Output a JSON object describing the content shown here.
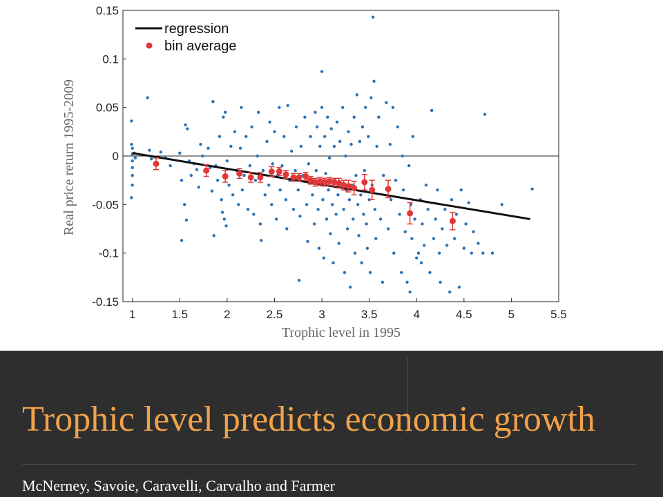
{
  "slide": {
    "title": "Trophic level predicts economic growth",
    "authors": "McNerney, Savoie, Caravelli, Carvalho and Farmer",
    "title_color": "#f0a24a",
    "footer_background": "#2e2e2e"
  },
  "chart_data": {
    "type": "scatter",
    "title": "",
    "xlabel": "Trophic level in 1995",
    "ylabel": "Real price return 1995-2009",
    "xlim": [
      0.9,
      5.5
    ],
    "ylim": [
      -0.15,
      0.15
    ],
    "xticks": [
      "1",
      "1.5",
      "2",
      "2.5",
      "3",
      "3.5",
      "4",
      "4.5",
      "5",
      "5.5"
    ],
    "yticks": [
      "0.15",
      "0.1",
      "0.05",
      "0",
      "-0.05",
      "-0.1",
      "-0.15"
    ],
    "legend": {
      "placement": "top-left",
      "entries": [
        "regression",
        "bin average"
      ]
    },
    "zero_line": true,
    "grid": false,
    "colors": {
      "scatter": "#2a72b5",
      "regression": "#111111",
      "bin_average": "#e03838"
    },
    "series": [
      {
        "name": "regression",
        "kind": "line",
        "x": [
          1,
          5.2
        ],
        "y": [
          0.003,
          -0.065
        ]
      },
      {
        "name": "bin average",
        "kind": "errorbar",
        "points": [
          {
            "x": 1.25,
            "y": -0.008,
            "err": 0.006
          },
          {
            "x": 1.78,
            "y": -0.015,
            "err": 0.006
          },
          {
            "x": 1.98,
            "y": -0.021,
            "err": 0.006
          },
          {
            "x": 2.13,
            "y": -0.018,
            "err": 0.005
          },
          {
            "x": 2.25,
            "y": -0.022,
            "err": 0.005
          },
          {
            "x": 2.35,
            "y": -0.022,
            "err": 0.005
          },
          {
            "x": 2.47,
            "y": -0.016,
            "err": 0.005
          },
          {
            "x": 2.55,
            "y": -0.016,
            "err": 0.004
          },
          {
            "x": 2.62,
            "y": -0.019,
            "err": 0.004
          },
          {
            "x": 2.7,
            "y": -0.022,
            "err": 0.004
          },
          {
            "x": 2.76,
            "y": -0.022,
            "err": 0.004
          },
          {
            "x": 2.83,
            "y": -0.021,
            "err": 0.004
          },
          {
            "x": 2.88,
            "y": -0.025,
            "err": 0.004
          },
          {
            "x": 2.93,
            "y": -0.027,
            "err": 0.004
          },
          {
            "x": 2.98,
            "y": -0.026,
            "err": 0.004
          },
          {
            "x": 3.03,
            "y": -0.027,
            "err": 0.004
          },
          {
            "x": 3.08,
            "y": -0.026,
            "err": 0.004
          },
          {
            "x": 3.13,
            "y": -0.027,
            "err": 0.004
          },
          {
            "x": 3.18,
            "y": -0.028,
            "err": 0.005
          },
          {
            "x": 3.23,
            "y": -0.03,
            "err": 0.005
          },
          {
            "x": 3.28,
            "y": -0.031,
            "err": 0.006
          },
          {
            "x": 3.34,
            "y": -0.033,
            "err": 0.007
          },
          {
            "x": 3.45,
            "y": -0.027,
            "err": 0.008
          },
          {
            "x": 3.53,
            "y": -0.035,
            "err": 0.01
          },
          {
            "x": 3.7,
            "y": -0.034,
            "err": 0.009
          },
          {
            "x": 3.93,
            "y": -0.059,
            "err": 0.011
          },
          {
            "x": 4.38,
            "y": -0.067,
            "err": 0.009
          }
        ]
      },
      {
        "name": "",
        "kind": "scatter",
        "points": [
          [
            0.99,
            0.036
          ],
          [
            0.99,
            0.012
          ],
          [
            1.0,
            0.008
          ],
          [
            1.0,
            0.002
          ],
          [
            1.0,
            -0.005
          ],
          [
            1.0,
            -0.012
          ],
          [
            1.0,
            -0.02
          ],
          [
            1.0,
            -0.03
          ],
          [
            0.99,
            -0.043
          ],
          [
            1.02,
            0.003
          ],
          [
            1.03,
            -0.002
          ],
          [
            1.16,
            0.06
          ],
          [
            1.18,
            0.006
          ],
          [
            1.2,
            -0.003
          ],
          [
            1.3,
            0.004
          ],
          [
            1.35,
            -0.002
          ],
          [
            1.4,
            -0.01
          ],
          [
            1.5,
            0.003
          ],
          [
            1.52,
            -0.025
          ],
          [
            1.56,
            0.032
          ],
          [
            1.58,
            0.028
          ],
          [
            1.6,
            -0.005
          ],
          [
            1.62,
            -0.02
          ],
          [
            1.65,
            -0.008
          ],
          [
            1.55,
            -0.05
          ],
          [
            1.57,
            -0.066
          ],
          [
            1.52,
            -0.087
          ],
          [
            1.68,
            -0.014
          ],
          [
            1.7,
            -0.032
          ],
          [
            1.72,
            0.012
          ],
          [
            1.74,
            0.0
          ],
          [
            1.8,
            0.008
          ],
          [
            1.82,
            -0.012
          ],
          [
            1.84,
            -0.036
          ],
          [
            1.85,
            0.056
          ],
          [
            1.88,
            -0.01
          ],
          [
            1.9,
            -0.025
          ],
          [
            1.92,
            0.02
          ],
          [
            1.94,
            -0.045
          ],
          [
            1.96,
            0.04
          ],
          [
            1.98,
            0.045
          ],
          [
            1.95,
            -0.058
          ],
          [
            1.97,
            -0.065
          ],
          [
            1.99,
            -0.072
          ],
          [
            1.86,
            -0.082
          ],
          [
            2.0,
            -0.005
          ],
          [
            2.02,
            -0.03
          ],
          [
            2.04,
            0.01
          ],
          [
            2.06,
            -0.04
          ],
          [
            2.08,
            0.025
          ],
          [
            2.1,
            -0.015
          ],
          [
            2.12,
            -0.05
          ],
          [
            2.14,
            0.008
          ],
          [
            2.15,
            0.05
          ],
          [
            2.16,
            -0.035
          ],
          [
            2.18,
            -0.02
          ],
          [
            2.2,
            0.02
          ],
          [
            2.22,
            -0.055
          ],
          [
            2.24,
            -0.01
          ],
          [
            2.26,
            0.03
          ],
          [
            2.28,
            -0.06
          ],
          [
            2.3,
            -0.025
          ],
          [
            2.32,
            0.0
          ],
          [
            2.33,
            0.045
          ],
          [
            2.35,
            -0.07
          ],
          [
            2.36,
            -0.087
          ],
          [
            2.38,
            -0.015
          ],
          [
            2.4,
            -0.04
          ],
          [
            2.42,
            0.015
          ],
          [
            2.44,
            -0.03
          ],
          [
            2.45,
            0.035
          ],
          [
            2.47,
            -0.05
          ],
          [
            2.48,
            -0.008
          ],
          [
            2.5,
            0.025
          ],
          [
            2.52,
            -0.065
          ],
          [
            2.53,
            -0.02
          ],
          [
            2.55,
            0.05
          ],
          [
            2.56,
            -0.035
          ],
          [
            2.58,
            -0.01
          ],
          [
            2.6,
            0.02
          ],
          [
            2.62,
            -0.045
          ],
          [
            2.63,
            -0.075
          ],
          [
            2.64,
            0.052
          ],
          [
            2.66,
            -0.025
          ],
          [
            2.68,
            0.005
          ],
          [
            2.7,
            -0.055
          ],
          [
            2.72,
            -0.015
          ],
          [
            2.73,
            0.03
          ],
          [
            2.75,
            -0.035
          ],
          [
            2.76,
            -0.128
          ],
          [
            2.77,
            -0.062
          ],
          [
            2.78,
            0.01
          ],
          [
            2.8,
            -0.02
          ],
          [
            2.82,
            0.04
          ],
          [
            2.84,
            -0.05
          ],
          [
            2.85,
            -0.088
          ],
          [
            2.86,
            -0.008
          ],
          [
            2.88,
            0.02
          ],
          [
            2.9,
            -0.04
          ],
          [
            2.92,
            -0.07
          ],
          [
            2.93,
            0.045
          ],
          [
            2.94,
            -0.015
          ],
          [
            2.95,
            0.03
          ],
          [
            2.96,
            -0.055
          ],
          [
            2.97,
            -0.095
          ],
          [
            2.98,
            0.01
          ],
          [
            2.99,
            -0.03
          ],
          [
            3.0,
            0.087
          ],
          [
            3.0,
            0.05
          ],
          [
            3.01,
            -0.045
          ],
          [
            3.02,
            -0.105
          ],
          [
            3.03,
            0.02
          ],
          [
            3.04,
            -0.018
          ],
          [
            3.05,
            -0.065
          ],
          [
            3.06,
            0.04
          ],
          [
            3.07,
            -0.035
          ],
          [
            3.08,
            -0.002
          ],
          [
            3.09,
            -0.08
          ],
          [
            3.1,
            0.028
          ],
          [
            3.11,
            -0.05
          ],
          [
            3.12,
            -0.11
          ],
          [
            3.13,
            0.01
          ],
          [
            3.14,
            -0.025
          ],
          [
            3.15,
            -0.06
          ],
          [
            3.16,
            0.035
          ],
          [
            3.17,
            -0.04
          ],
          [
            3.18,
            -0.09
          ],
          [
            3.19,
            0.015
          ],
          [
            3.2,
            -0.028
          ],
          [
            3.22,
            0.05
          ],
          [
            3.23,
            -0.055
          ],
          [
            3.24,
            -0.12
          ],
          [
            3.25,
            0.0
          ],
          [
            3.26,
            -0.035
          ],
          [
            3.27,
            -0.075
          ],
          [
            3.28,
            0.025
          ],
          [
            3.29,
            -0.045
          ],
          [
            3.3,
            -0.135
          ],
          [
            3.31,
            0.012
          ],
          [
            3.32,
            -0.03
          ],
          [
            3.33,
            -0.065
          ],
          [
            3.34,
            0.04
          ],
          [
            3.35,
            -0.1
          ],
          [
            3.36,
            -0.02
          ],
          [
            3.37,
            0.063
          ],
          [
            3.38,
            -0.05
          ],
          [
            3.39,
            -0.082
          ],
          [
            3.4,
            0.015
          ],
          [
            3.41,
            -0.04
          ],
          [
            3.42,
            -0.11
          ],
          [
            3.43,
            0.03
          ],
          [
            3.44,
            -0.06
          ],
          [
            3.45,
            -0.015
          ],
          [
            3.46,
            0.05
          ],
          [
            3.47,
            -0.07
          ],
          [
            3.48,
            -0.095
          ],
          [
            3.49,
            0.02
          ],
          [
            3.5,
            -0.045
          ],
          [
            3.51,
            -0.12
          ],
          [
            3.52,
            0.06
          ],
          [
            3.53,
            -0.03
          ],
          [
            3.54,
            0.143
          ],
          [
            3.55,
            0.077
          ],
          [
            3.56,
            -0.055
          ],
          [
            3.57,
            -0.085
          ],
          [
            3.58,
            0.01
          ],
          [
            3.6,
            0.04
          ],
          [
            3.62,
            -0.065
          ],
          [
            3.64,
            -0.13
          ],
          [
            3.65,
            -0.02
          ],
          [
            3.68,
            0.055
          ],
          [
            3.7,
            -0.075
          ],
          [
            3.72,
            0.012
          ],
          [
            3.73,
            -0.045
          ],
          [
            3.75,
            0.05
          ],
          [
            3.76,
            -0.1
          ],
          [
            3.78,
            -0.025
          ],
          [
            3.8,
            0.03
          ],
          [
            3.82,
            -0.06
          ],
          [
            3.84,
            -0.12
          ],
          [
            3.85,
            0.0
          ],
          [
            3.86,
            -0.035
          ],
          [
            3.88,
            -0.078
          ],
          [
            3.9,
            -0.13
          ],
          [
            3.92,
            -0.01
          ],
          [
            3.93,
            -0.14
          ],
          [
            3.94,
            -0.05
          ],
          [
            3.95,
            -0.085
          ],
          [
            3.96,
            0.02
          ],
          [
            3.98,
            -0.065
          ],
          [
            4.0,
            -0.105
          ],
          [
            4.02,
            -0.1
          ],
          [
            4.04,
            -0.045
          ],
          [
            4.05,
            -0.11
          ],
          [
            4.06,
            -0.07
          ],
          [
            4.08,
            -0.092
          ],
          [
            4.1,
            -0.03
          ],
          [
            4.12,
            -0.055
          ],
          [
            4.14,
            -0.12
          ],
          [
            4.16,
            0.047
          ],
          [
            4.18,
            -0.085
          ],
          [
            4.2,
            -0.065
          ],
          [
            4.22,
            -0.035
          ],
          [
            4.24,
            -0.1
          ],
          [
            4.25,
            -0.13
          ],
          [
            4.27,
            -0.075
          ],
          [
            4.3,
            -0.055
          ],
          [
            4.32,
            -0.092
          ],
          [
            4.35,
            -0.14
          ],
          [
            4.37,
            -0.045
          ],
          [
            4.4,
            -0.085
          ],
          [
            4.42,
            -0.06
          ],
          [
            4.45,
            -0.135
          ],
          [
            4.47,
            -0.035
          ],
          [
            4.5,
            -0.095
          ],
          [
            4.52,
            -0.07
          ],
          [
            4.55,
            -0.048
          ],
          [
            4.58,
            -0.1
          ],
          [
            4.6,
            -0.078
          ],
          [
            4.65,
            -0.09
          ],
          [
            4.7,
            -0.1
          ],
          [
            4.72,
            0.043
          ],
          [
            4.8,
            -0.1
          ],
          [
            4.9,
            -0.05
          ],
          [
            5.22,
            -0.034
          ]
        ]
      }
    ]
  }
}
